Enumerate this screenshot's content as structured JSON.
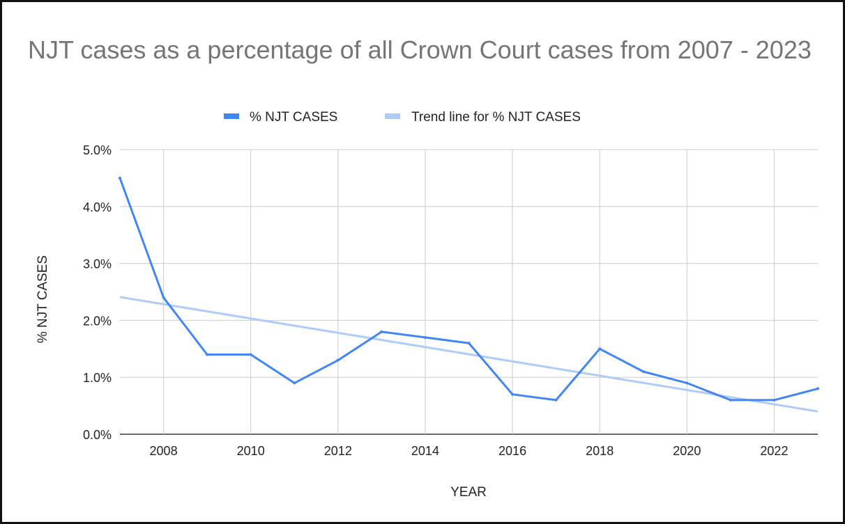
{
  "chart_data": {
    "type": "line",
    "title": "NJT cases as a percentage of all Crown Court cases from 2007 - 2023",
    "xlabel": "YEAR",
    "ylabel": "% NJT CASES",
    "xlim": [
      2007,
      2023
    ],
    "ylim": [
      0,
      0.05
    ],
    "x_ticks": [
      2008,
      2010,
      2012,
      2014,
      2016,
      2018,
      2020,
      2022
    ],
    "y_ticks": [
      0,
      0.01,
      0.02,
      0.03,
      0.04,
      0.05
    ],
    "y_tick_labels": [
      "0.0%",
      "1.0%",
      "2.0%",
      "3.0%",
      "4.0%",
      "5.0%"
    ],
    "grid": true,
    "legend_position": "top",
    "x": [
      2007,
      2008,
      2009,
      2010,
      2011,
      2012,
      2013,
      2014,
      2015,
      2016,
      2017,
      2018,
      2019,
      2020,
      2021,
      2022,
      2023
    ],
    "series": [
      {
        "name": "% NJT CASES",
        "color": "#4285f4",
        "values": [
          0.045,
          0.024,
          0.014,
          0.014,
          0.009,
          0.013,
          0.018,
          0.017,
          0.016,
          0.007,
          0.006,
          0.015,
          0.011,
          0.009,
          0.006,
          0.006,
          0.008
        ]
      }
    ],
    "trendline": {
      "name": "Trend line for % NJT CASES",
      "color": "#aecbfa",
      "start": [
        2007,
        0.0241
      ],
      "end": [
        2023,
        0.004
      ]
    }
  }
}
